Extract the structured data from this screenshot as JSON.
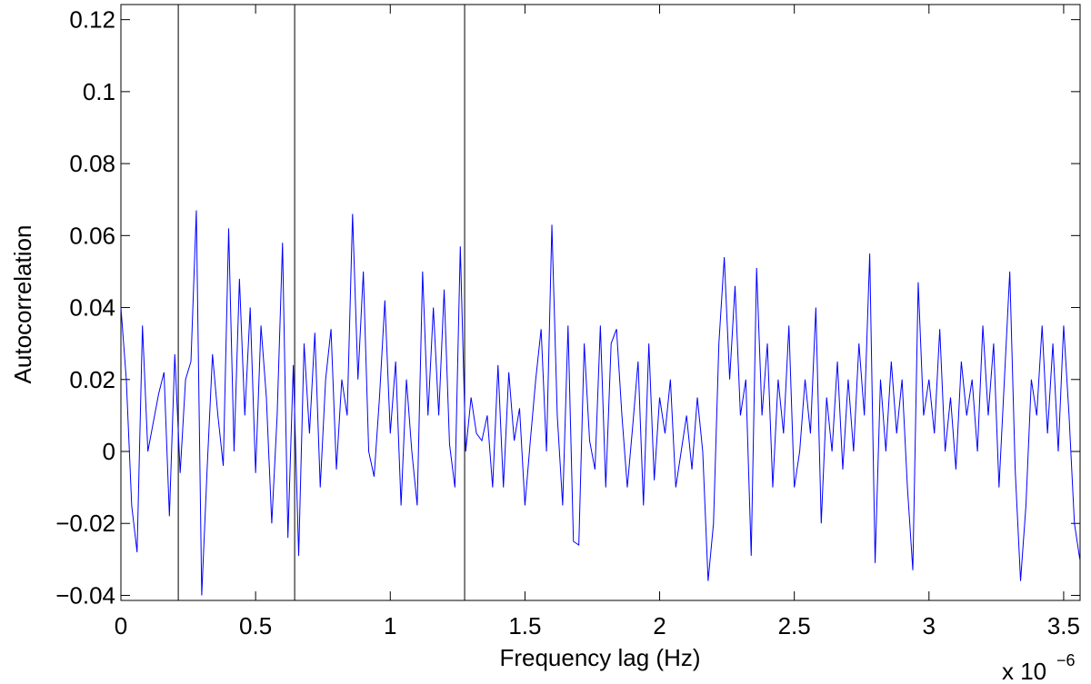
{
  "chart_data": {
    "type": "line",
    "xlabel": "Frequency lag (Hz)",
    "ylabel": "Autocorrelation",
    "x_multiplier": "x 10",
    "x_multiplier_exponent": "−6",
    "xlim": [
      0,
      3.561
    ],
    "ylim": [
      -0.0414,
      0.1242
    ],
    "xticks": [
      0,
      0.5,
      1,
      1.5,
      2,
      2.5,
      3,
      3.5
    ],
    "yticks": [
      {
        "value": -0.04,
        "label": "−0.04"
      },
      {
        "value": -0.02,
        "label": "−0.02"
      },
      0,
      0.02,
      0.04,
      0.06,
      0.08,
      0.1,
      0.12
    ],
    "grid": false,
    "vlines": [
      0.213,
      0.645,
      1.276
    ],
    "vline_color": "#000000",
    "series": [
      {
        "color": "#0000ff",
        "x": [
          0,
          0.02,
          0.04,
          0.06,
          0.08,
          0.1,
          0.12,
          0.14,
          0.16,
          0.18,
          0.2,
          0.22,
          0.24,
          0.26,
          0.28,
          0.3,
          0.32,
          0.34,
          0.36,
          0.38,
          0.4,
          0.42,
          0.44,
          0.46,
          0.48,
          0.5,
          0.52,
          0.54,
          0.56,
          0.58,
          0.6,
          0.62,
          0.64,
          0.66,
          0.68,
          0.7,
          0.72,
          0.74,
          0.76,
          0.78,
          0.8,
          0.82,
          0.84,
          0.86,
          0.88,
          0.9,
          0.92,
          0.94,
          0.96,
          0.98,
          1,
          1.02,
          1.04,
          1.06,
          1.08,
          1.1,
          1.12,
          1.14,
          1.16,
          1.18,
          1.2,
          1.22,
          1.24,
          1.26,
          1.28,
          1.3,
          1.32,
          1.34,
          1.36,
          1.38,
          1.4,
          1.42,
          1.44,
          1.46,
          1.48,
          1.5,
          1.52,
          1.54,
          1.56,
          1.58,
          1.6,
          1.62,
          1.64,
          1.66,
          1.68,
          1.7,
          1.72,
          1.74,
          1.76,
          1.78,
          1.8,
          1.82,
          1.84,
          1.86,
          1.88,
          1.9,
          1.92,
          1.94,
          1.96,
          1.98,
          2,
          2.02,
          2.04,
          2.06,
          2.08,
          2.1,
          2.12,
          2.14,
          2.16,
          2.18,
          2.2,
          2.22,
          2.24,
          2.26,
          2.28,
          2.3,
          2.32,
          2.34,
          2.36,
          2.38,
          2.4,
          2.42,
          2.44,
          2.46,
          2.48,
          2.5,
          2.52,
          2.54,
          2.56,
          2.58,
          2.6,
          2.62,
          2.64,
          2.66,
          2.68,
          2.7,
          2.72,
          2.74,
          2.76,
          2.78,
          2.8,
          2.82,
          2.84,
          2.86,
          2.88,
          2.9,
          2.92,
          2.94,
          2.96,
          2.98,
          3,
          3.02,
          3.04,
          3.06,
          3.08,
          3.1,
          3.12,
          3.14,
          3.16,
          3.18,
          3.2,
          3.22,
          3.24,
          3.26,
          3.28,
          3.3,
          3.32,
          3.34,
          3.36,
          3.38,
          3.4,
          3.42,
          3.44,
          3.46,
          3.48,
          3.5,
          3.52,
          3.54,
          3.56
        ],
        "values": [
          0.04,
          0.02,
          -0.015,
          -0.028,
          0.035,
          0,
          0.008,
          0.016,
          0.022,
          -0.018,
          0.027,
          -0.006,
          0.02,
          0.025,
          0.067,
          -0.04,
          -0.005,
          0.027,
          0.01,
          -0.004,
          0.062,
          0,
          0.048,
          0.01,
          0.04,
          -0.006,
          0.035,
          0.015,
          -0.02,
          0.01,
          0.058,
          -0.024,
          0.024,
          -0.029,
          0.03,
          0.005,
          0.033,
          -0.01,
          0.02,
          0.034,
          -0.005,
          0.02,
          0.01,
          0.066,
          0.02,
          0.05,
          0,
          -0.007,
          0.015,
          0.042,
          0.005,
          0.025,
          -0.015,
          0.02,
          0,
          -0.015,
          0.05,
          0.01,
          0.04,
          0.01,
          0.045,
          0.002,
          -0.01,
          0.057,
          0,
          0.015,
          0.005,
          0.003,
          0.01,
          -0.01,
          0.024,
          -0.01,
          0.022,
          0.003,
          0.012,
          -0.015,
          0.003,
          0.02,
          0.034,
          0,
          0.063,
          0.01,
          -0.015,
          0.035,
          -0.025,
          -0.026,
          0.03,
          0.003,
          -0.005,
          0.035,
          -0.01,
          0.03,
          0.034,
          0.01,
          -0.01,
          0.007,
          0.025,
          -0.015,
          0.03,
          -0.008,
          0.015,
          0.005,
          0.02,
          -0.01,
          0,
          0.01,
          -0.005,
          0.015,
          0,
          -0.036,
          -0.02,
          0.03,
          0.054,
          0.02,
          0.046,
          0.01,
          0.02,
          -0.029,
          0.051,
          0.01,
          0.03,
          -0.01,
          0.02,
          0.005,
          0.035,
          -0.01,
          0,
          0.02,
          0.005,
          0.04,
          -0.02,
          0.015,
          0,
          0.025,
          -0.005,
          0.02,
          0,
          0.03,
          0.01,
          0.055,
          -0.031,
          0.02,
          0,
          0.025,
          0.005,
          0.02,
          -0.01,
          -0.033,
          0.047,
          0.01,
          0.02,
          0.005,
          0.034,
          0,
          0.015,
          -0.005,
          0.025,
          0.01,
          0.02,
          0,
          0.035,
          0.01,
          0.03,
          -0.01,
          0.02,
          0.05,
          -0.005,
          -0.036,
          -0.015,
          0.02,
          0.01,
          0.035,
          0.005,
          0.03,
          0,
          0.035,
          0.01,
          -0.02,
          -0.03
        ]
      }
    ]
  }
}
